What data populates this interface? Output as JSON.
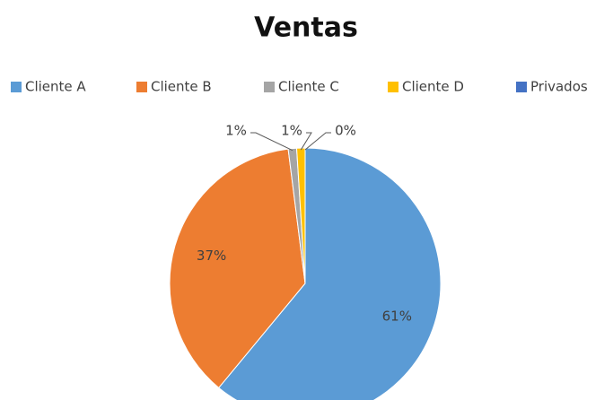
{
  "chart_data": {
    "type": "pie",
    "title": "Ventas",
    "categories": [
      "Cliente A",
      "Cliente B",
      "Cliente C",
      "Cliente D",
      "Privados"
    ],
    "values": [
      61,
      37,
      1,
      1,
      0
    ],
    "value_labels": [
      "61%",
      "37%",
      "1%",
      "1%",
      "0%"
    ],
    "colors": [
      "#5b9bd5",
      "#ed7d31",
      "#a5a5a5",
      "#ffc000",
      "#4472c4"
    ],
    "legend": "top"
  }
}
